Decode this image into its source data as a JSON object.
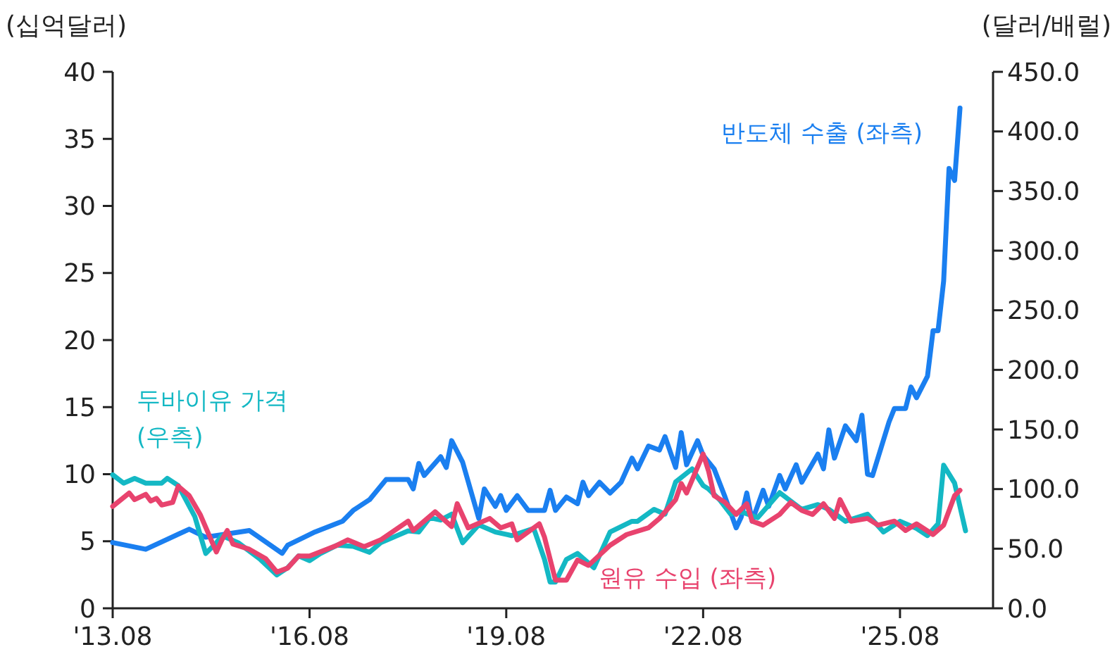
{
  "chart_data": {
    "type": "line",
    "ylabel": "(십억달러)",
    "y2label": "(달러/배럴)",
    "line_style": "solid",
    "xlim": [
      "2013-08",
      "2027-01"
    ],
    "xticks": [
      {
        "value": "2013-08",
        "label": "'13.08"
      },
      {
        "value": "2016-08",
        "label": "'16.08"
      },
      {
        "value": "2019-08",
        "label": "'19.08"
      },
      {
        "value": "2022-08",
        "label": "'22.08"
      },
      {
        "value": "2025-08",
        "label": "'25.08"
      }
    ],
    "ylim": [
      0,
      40
    ],
    "yticks": [
      0,
      5,
      10,
      15,
      20,
      25,
      30,
      35,
      40
    ],
    "y2lim": [
      0,
      450
    ],
    "y2ticks": [
      {
        "value": 0,
        "label": "0.0"
      },
      {
        "value": 50,
        "label": "50.0"
      },
      {
        "value": 100,
        "label": "100.0"
      },
      {
        "value": 150,
        "label": "150.0"
      },
      {
        "value": 200,
        "label": "200.0"
      },
      {
        "value": 250,
        "label": "250.0"
      },
      {
        "value": 300,
        "label": "300.0"
      },
      {
        "value": 350,
        "label": "350.0"
      },
      {
        "value": 400,
        "label": "400.0"
      },
      {
        "value": 450,
        "label": "450.0"
      }
    ],
    "series": [
      {
        "name": "반도체 수출 (좌측)",
        "color": "#1a7ff0",
        "x": [
          "2013-08",
          "2014-02",
          "2014-10",
          "2015-01",
          "2015-09",
          "2016-03",
          "2016-04",
          "2016-09",
          "2017-02",
          "2017-04",
          "2017-07",
          "2017-10",
          "2018-02",
          "2018-03",
          "2018-04",
          "2018-05",
          "2018-08",
          "2018-09",
          "2018-10",
          "2018-12",
          "2019-03",
          "2019-04",
          "2019-06",
          "2019-07",
          "2019-08",
          "2019-10",
          "2019-12",
          "2020-03",
          "2020-04",
          "2020-05",
          "2020-07",
          "2020-09",
          "2020-10",
          "2020-11",
          "2021-01",
          "2021-03",
          "2021-05",
          "2021-07",
          "2021-08",
          "2021-10",
          "2021-12",
          "2022-01",
          "2022-03",
          "2022-04",
          "2022-05",
          "2022-07",
          "2022-08",
          "2022-10",
          "2022-12",
          "2023-02",
          "2023-03",
          "2023-04",
          "2023-05",
          "2023-07",
          "2023-08",
          "2023-10",
          "2023-11",
          "2024-01",
          "2024-02",
          "2024-05",
          "2024-06",
          "2024-07",
          "2024-08",
          "2024-10",
          "2024-12",
          "2025-01",
          "2025-02",
          "2025-03",
          "2025-06",
          "2025-07",
          "2025-09",
          "2025-10",
          "2025-11",
          "2026-01",
          "2026-02",
          "2026-03",
          "2026-04",
          "2026-05",
          "2026-06",
          "2026-07"
        ],
        "values": [
          4.9,
          4.4,
          5.9,
          5.3,
          5.8,
          4.1,
          4.7,
          5.7,
          6.5,
          7.3,
          8.1,
          9.6,
          9.6,
          8.9,
          10.8,
          9.9,
          11.3,
          10.5,
          12.5,
          10.9,
          6.7,
          8.9,
          7.6,
          8.4,
          7.3,
          8.4,
          7.3,
          7.3,
          8.8,
          7.3,
          8.3,
          7.8,
          9.4,
          8.4,
          9.4,
          8.6,
          9.4,
          11.2,
          10.4,
          12.1,
          11.8,
          12.8,
          10.5,
          13.1,
          10.7,
          12.5,
          11.4,
          10.4,
          8.3,
          6.0,
          6.8,
          8.6,
          6.5,
          8.8,
          7.6,
          9.9,
          8.9,
          10.7,
          9.4,
          11.5,
          10.4,
          13.3,
          11.2,
          13.6,
          12.5,
          14.4,
          10.0,
          9.9,
          13.9,
          14.9,
          14.9,
          16.5,
          15.7,
          17.3,
          20.7,
          20.7,
          24.4,
          32.8,
          31.9,
          37.3
        ]
      },
      {
        "name": "두바이유 가격 (우측)",
        "color": "#14b8c4",
        "axis": "y2",
        "x": [
          "2013-08",
          "2013-10",
          "2013-12",
          "2014-02",
          "2014-05",
          "2014-06",
          "2014-08",
          "2014-11",
          "2015-01",
          "2015-03",
          "2015-04",
          "2015-07",
          "2015-11",
          "2016-02",
          "2016-04",
          "2016-06",
          "2016-08",
          "2016-10",
          "2017-01",
          "2017-04",
          "2017-07",
          "2017-09",
          "2018-02",
          "2018-04",
          "2018-06",
          "2018-08",
          "2018-10",
          "2018-12",
          "2019-03",
          "2019-06",
          "2019-09",
          "2020-01",
          "2020-03",
          "2020-04",
          "2020-05",
          "2020-07",
          "2020-09",
          "2020-12",
          "2021-03",
          "2021-07",
          "2021-08",
          "2021-11",
          "2022-01",
          "2022-03",
          "2022-06",
          "2022-08",
          "2022-09",
          "2022-11",
          "2023-01",
          "2023-03",
          "2023-06",
          "2023-10",
          "2024-02",
          "2024-05",
          "2024-07",
          "2024-10",
          "2025-02",
          "2025-05",
          "2025-08",
          "2025-11",
          "2026-01",
          "2026-03",
          "2026-04",
          "2026-06",
          "2026-08"
        ],
        "values": [
          112,
          105,
          109,
          105,
          105,
          109,
          103,
          77,
          46,
          55,
          61,
          55,
          41,
          28,
          34,
          44,
          40,
          46,
          53,
          52,
          47,
          55,
          65,
          64,
          76,
          74,
          79,
          55,
          70,
          64,
          61,
          67,
          41,
          22,
          22,
          41,
          46,
          34,
          64,
          73,
          73,
          83,
          79,
          106,
          117,
          103,
          100,
          91,
          79,
          81,
          76,
          97,
          83,
          87,
          83,
          73,
          79,
          64,
          73,
          67,
          61,
          71,
          120,
          105,
          65
        ]
      },
      {
        "name": "원유 수입 (좌측)",
        "color": "#e8436e",
        "x": [
          "2013-08",
          "2013-11",
          "2013-12",
          "2014-02",
          "2014-03",
          "2014-04",
          "2014-05",
          "2014-07",
          "2014-08",
          "2014-10",
          "2014-12",
          "2015-03",
          "2015-04",
          "2015-05",
          "2015-06",
          "2015-09",
          "2015-12",
          "2016-02",
          "2016-04",
          "2016-06",
          "2016-08",
          "2017-01",
          "2017-03",
          "2017-06",
          "2017-09",
          "2018-02",
          "2018-03",
          "2018-07",
          "2018-10",
          "2018-11",
          "2019-01",
          "2019-05",
          "2019-07",
          "2019-09",
          "2019-10",
          "2020-02",
          "2020-03",
          "2020-05",
          "2020-07",
          "2020-09",
          "2020-11",
          "2021-03",
          "2021-06",
          "2021-10",
          "2021-12",
          "2022-03",
          "2022-04",
          "2022-05",
          "2022-08",
          "2022-09",
          "2022-10",
          "2022-12",
          "2023-02",
          "2023-04",
          "2023-05",
          "2023-07",
          "2023-10",
          "2023-12",
          "2024-02",
          "2024-04",
          "2024-06",
          "2024-08",
          "2024-09",
          "2024-11",
          "2025-02",
          "2025-04",
          "2025-07",
          "2025-09",
          "2025-11",
          "2026-02",
          "2026-04",
          "2026-06",
          "2026-07"
        ],
        "values": [
          7.6,
          8.6,
          8.1,
          8.5,
          8.0,
          8.2,
          7.7,
          7.9,
          9.1,
          8.4,
          7.0,
          4.2,
          5.1,
          5.8,
          4.8,
          4.4,
          3.7,
          2.7,
          3.0,
          3.9,
          3.9,
          4.7,
          5.1,
          4.6,
          5.1,
          6.5,
          5.8,
          7.2,
          6.1,
          7.8,
          6.0,
          6.7,
          6.0,
          6.3,
          5.1,
          6.3,
          5.3,
          2.1,
          2.1,
          3.6,
          3.2,
          4.7,
          5.5,
          6.0,
          6.7,
          8.1,
          9.3,
          8.6,
          11.5,
          10.2,
          8.4,
          7.9,
          7.0,
          7.8,
          6.5,
          6.2,
          7.0,
          7.9,
          7.3,
          7.0,
          7.8,
          6.7,
          8.1,
          6.5,
          6.7,
          6.2,
          6.5,
          5.8,
          6.3,
          5.5,
          6.2,
          8.4,
          8.8
        ]
      }
    ]
  }
}
